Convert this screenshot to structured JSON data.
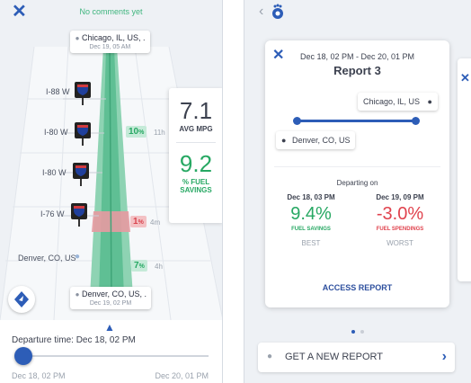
{
  "colors": {
    "accent_blue": "#2d5db7",
    "good_green": "#27a863",
    "bad_red": "#e0424d",
    "route_green": "#5fbf94"
  },
  "left": {
    "comments": "No comments yet",
    "origin": {
      "city": "Chicago, IL, US, .",
      "date": "Dec 19, 05 AM"
    },
    "destination": {
      "city": "Denver, CO, US, .",
      "date": "Dec 19, 02 PM"
    },
    "highways": [
      {
        "label": "I-88 W"
      },
      {
        "label": "I-80 W"
      },
      {
        "label": "I-80 W"
      },
      {
        "label": "I-76 W"
      }
    ],
    "waypoint_label": "Denver, CO, US",
    "segments": [
      {
        "pct": "10",
        "unit": "%",
        "time": "11h"
      },
      {
        "pct": "1",
        "unit": "%",
        "time": "4m"
      },
      {
        "pct": "7",
        "unit": "%",
        "time": "4h"
      }
    ],
    "stats": {
      "mpg_value": "7.1",
      "mpg_label": "AVG MPG",
      "fuel_value": "9.2",
      "fuel_label_1": "% FUEL",
      "fuel_label_2": "SAVINGS"
    },
    "departure_label": "Departure time: Dec 18, 02 PM",
    "slider_start": "Dec 18, 02 PM",
    "slider_end": "Dec 20, 01 PM",
    "slider_position": 0.02
  },
  "right": {
    "report": {
      "range": "Dec 18, 02 PM - Dec 20, 01 PM",
      "title": "Report 3",
      "to_location": "Chicago, IL, US",
      "from_location": "Denver, CO, US",
      "departing_on": "Departing on",
      "best": {
        "date": "Dec 18, 03 PM",
        "value": "9.4%",
        "label": "FUEL SAVINGS",
        "tag": "BEST"
      },
      "worst": {
        "date": "Dec 19, 09 PM",
        "value": "-3.0%",
        "label": "FUEL SPENDINGS",
        "tag": "WORST"
      },
      "access_label": "ACCESS REPORT"
    },
    "new_report_label": "GET A NEW REPORT",
    "page_dots": 2,
    "active_page": 1
  }
}
